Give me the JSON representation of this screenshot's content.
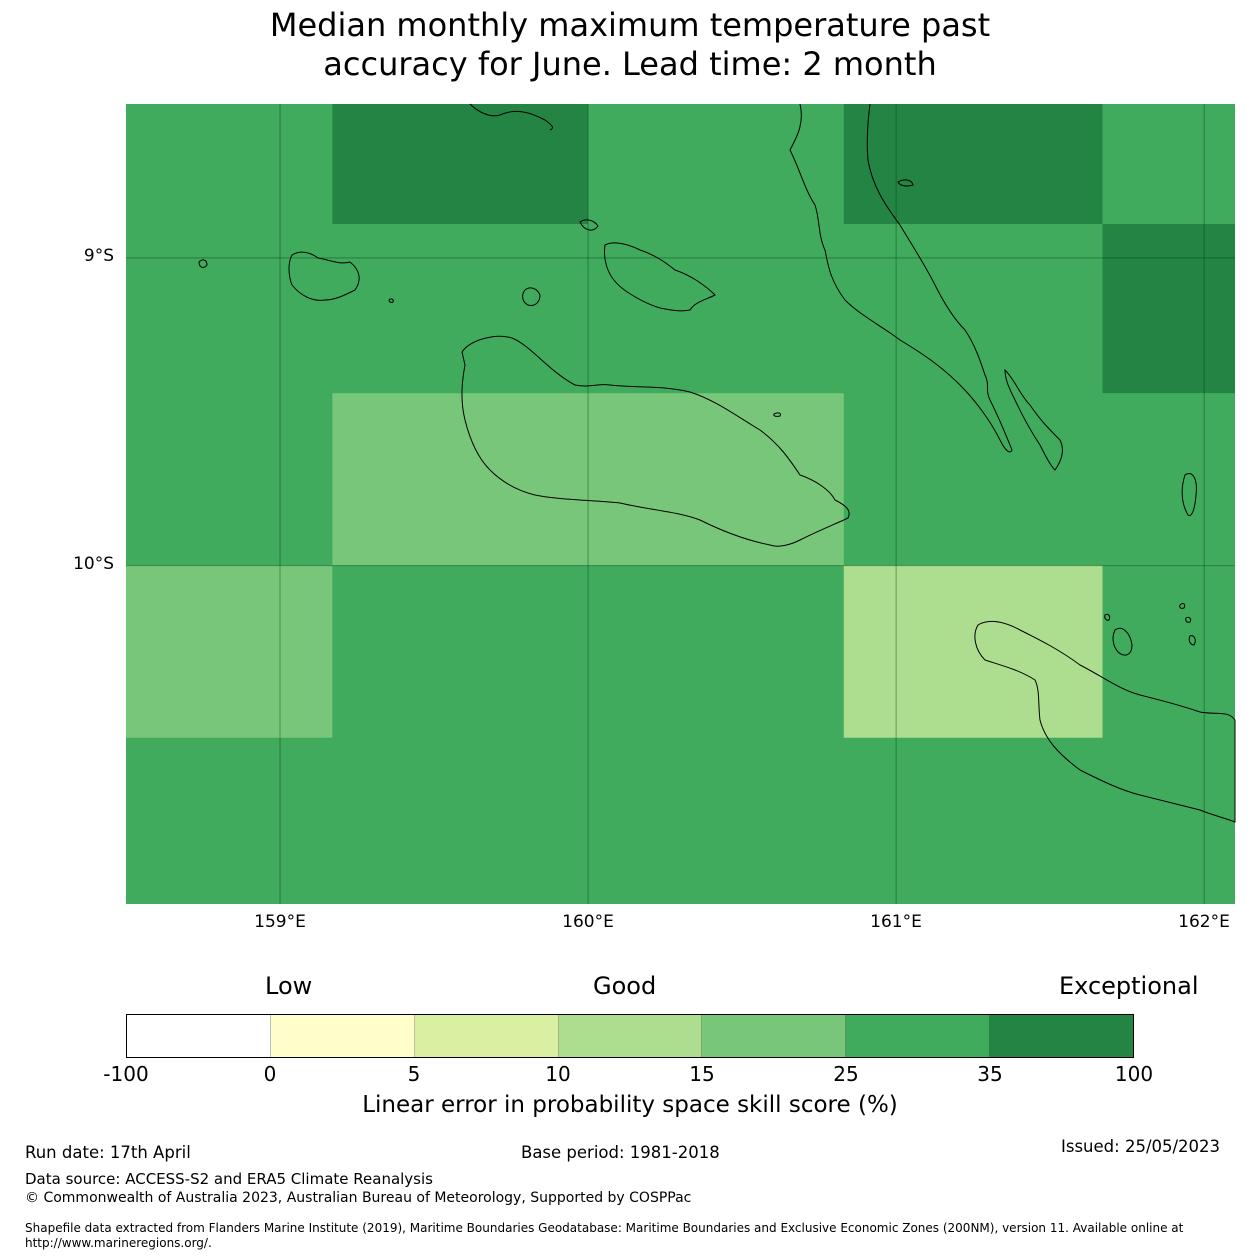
{
  "title_line1": "Median monthly maximum temperature past",
  "title_line2": "accuracy for June. Lead time: 2 month",
  "map": {
    "lat_labels": [
      "9°S",
      "10°S"
    ],
    "lon_labels": [
      "159°E",
      "160°E",
      "161°E",
      "162°E"
    ],
    "lon_range": [
      158.5,
      162.1
    ],
    "lat_range": [
      -8.5,
      -11.1
    ],
    "graticule": {
      "lon": [
        159,
        160,
        161,
        162
      ],
      "lat": [
        -9,
        -10
      ]
    },
    "grid_cells": [
      {
        "lon": [
          158.5,
          159.17
        ],
        "lat": [
          -8.5,
          -10.0
        ],
        "category": "25-35"
      },
      {
        "lon": [
          159.17,
          160.0
        ],
        "lat": [
          -8.5,
          -8.89
        ],
        "category": "35-100"
      },
      {
        "lon": [
          160.0,
          160.83
        ],
        "lat": [
          -8.5,
          -8.89
        ],
        "category": "25-35"
      },
      {
        "lon": [
          160.83,
          161.67
        ],
        "lat": [
          -8.5,
          -8.89
        ],
        "category": "35-100"
      },
      {
        "lon": [
          161.67,
          162.1
        ],
        "lat": [
          -8.5,
          -8.89
        ],
        "category": "25-35"
      },
      {
        "lon": [
          159.17,
          160.83
        ],
        "lat": [
          -8.89,
          -9.44
        ],
        "category": "25-35"
      },
      {
        "lon": [
          160.83,
          161.67
        ],
        "lat": [
          -8.89,
          -10.0
        ],
        "category": "25-35"
      },
      {
        "lon": [
          161.67,
          162.1
        ],
        "lat": [
          -8.89,
          -9.44
        ],
        "category": "35-100"
      },
      {
        "lon": [
          159.17,
          160.83
        ],
        "lat": [
          -9.44,
          -10.0
        ],
        "category": "15-25"
      },
      {
        "lon": [
          161.67,
          162.1
        ],
        "lat": [
          -9.44,
          -10.0
        ],
        "category": "25-35"
      },
      {
        "lon": [
          158.5,
          159.17
        ],
        "lat": [
          -10.0,
          -10.56
        ],
        "category": "15-25"
      },
      {
        "lon": [
          159.17,
          160.83
        ],
        "lat": [
          -10.0,
          -10.56
        ],
        "category": "25-35"
      },
      {
        "lon": [
          160.83,
          161.67
        ],
        "lat": [
          -10.0,
          -10.56
        ],
        "category": "10-15"
      },
      {
        "lon": [
          161.67,
          162.1
        ],
        "lat": [
          -10.0,
          -10.56
        ],
        "category": "25-35"
      },
      {
        "lon": [
          158.5,
          162.1
        ],
        "lat": [
          -10.56,
          -11.1
        ],
        "category": "25-35"
      }
    ]
  },
  "legend": {
    "word_low": "Low",
    "word_good": "Good",
    "word_exceptional": "Exceptional",
    "ticks": [
      "-100",
      "0",
      "5",
      "10",
      "15",
      "25",
      "35",
      "100"
    ],
    "colors": [
      "#ffffff",
      "#ffffcc",
      "#d9f0a3",
      "#addd8e",
      "#78c679",
      "#41ab5d",
      "#238443"
    ],
    "categories": [
      "-100-0",
      "0-5",
      "5-10",
      "10-15",
      "15-25",
      "25-35",
      "35-100"
    ],
    "label": "Linear error in probability space skill score (%)"
  },
  "footer": {
    "run_date": "Run date: 17th April",
    "base_period": "Base period: 1981-2018",
    "issued": "Issued: 25/05/2023",
    "data_source": "Data source: ACCESS-S2 and ERA5 Climate Reanalysis",
    "copyright": "© Commonwealth of Australia 2023, Australian Bureau of Meteorology, Supported by COSPPac",
    "shapefile_line1": "Shapefile data extracted from Flanders Marine Institute (2019), Maritime Boundaries Geodatabase: Maritime Boundaries and Exclusive Economic Zones (200NM), version 11. Available online at",
    "shapefile_line2": "http://www.marineregions.org/."
  }
}
